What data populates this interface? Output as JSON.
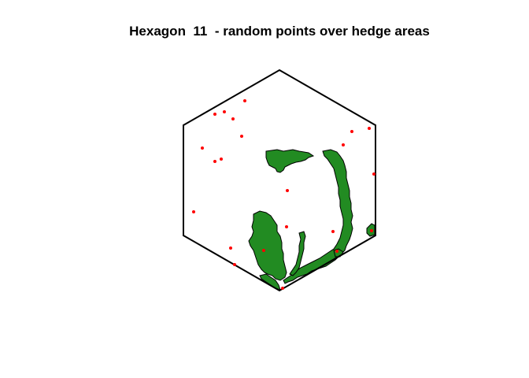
{
  "title": "Hexagon  11  - random points over hedge areas",
  "map": {
    "hexagon_id": 11,
    "layers": [
      {
        "name": "hexagon-boundary",
        "stroke": "#000000",
        "fill": "none"
      },
      {
        "name": "hedge-areas",
        "fill": "#228b22",
        "stroke": "#000000"
      },
      {
        "name": "random-points",
        "fill": "#ff0000"
      }
    ],
    "random_point_count": 22
  }
}
